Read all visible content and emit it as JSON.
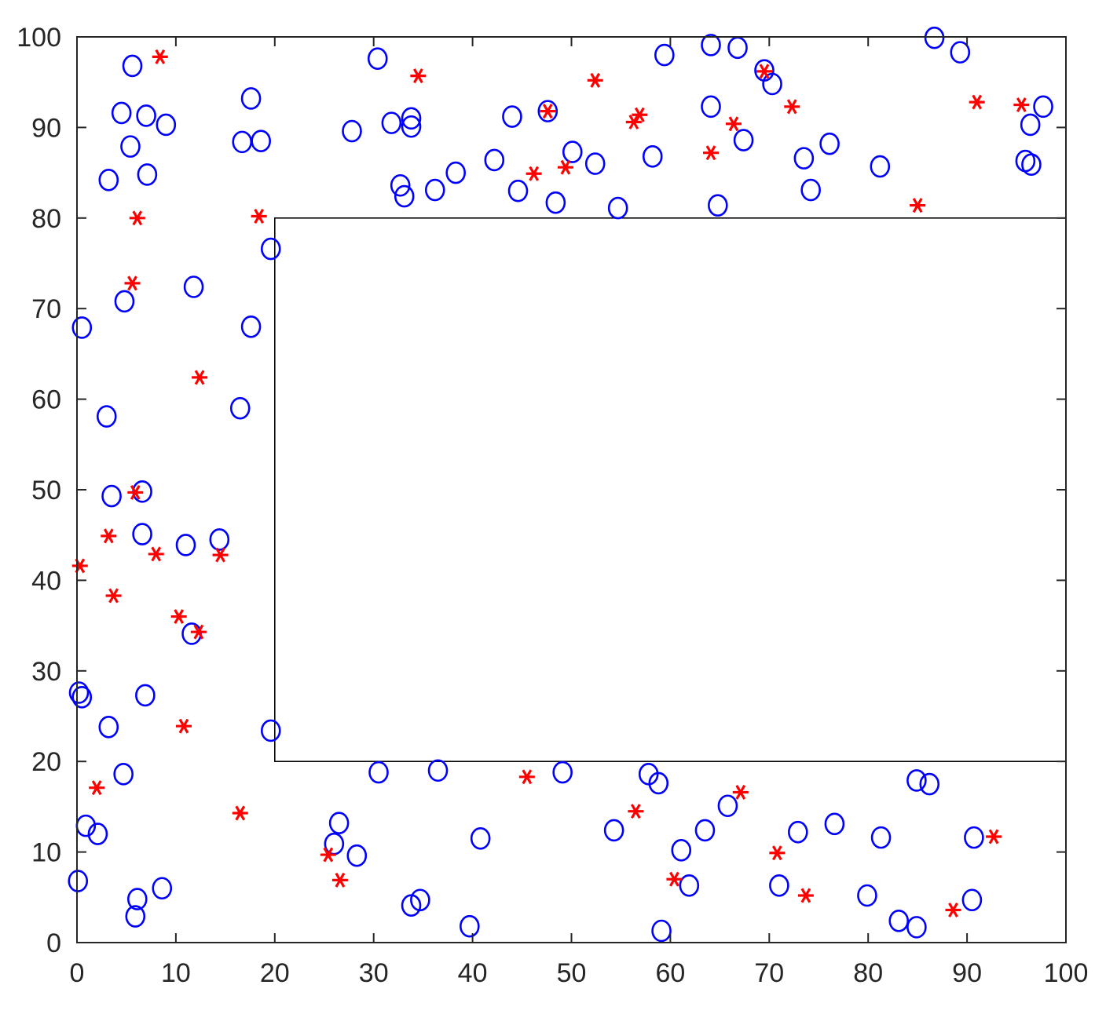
{
  "chart_data": {
    "type": "scatter",
    "title": "",
    "xlabel": "",
    "ylabel": "",
    "xlim": [
      0,
      100
    ],
    "ylim": [
      0,
      100
    ],
    "xticks": [
      0,
      10,
      20,
      30,
      40,
      50,
      60,
      70,
      80,
      90,
      100
    ],
    "yticks": [
      0,
      10,
      20,
      30,
      40,
      50,
      60,
      70,
      80,
      90,
      100
    ],
    "grid": false,
    "inner_rectangle": {
      "x0": 20,
      "x1": 100,
      "y0": 20,
      "y1": 80,
      "color": "#000000"
    },
    "series": [
      {
        "marker": "circle",
        "color": "#0000ff",
        "points": [
          [
            5.6,
            96.8
          ],
          [
            4.5,
            91.6
          ],
          [
            7.0,
            91.3
          ],
          [
            9.0,
            90.3
          ],
          [
            5.4,
            87.9
          ],
          [
            7.1,
            84.8
          ],
          [
            3.2,
            84.2
          ],
          [
            17.6,
            93.2
          ],
          [
            16.7,
            88.4
          ],
          [
            18.6,
            88.5
          ],
          [
            19.6,
            76.6
          ],
          [
            11.8,
            72.4
          ],
          [
            4.8,
            70.8
          ],
          [
            0.5,
            67.9
          ],
          [
            17.6,
            68.0
          ],
          [
            3.0,
            58.1
          ],
          [
            16.5,
            59.0
          ],
          [
            3.5,
            49.3
          ],
          [
            6.6,
            49.8
          ],
          [
            6.6,
            45.1
          ],
          [
            11.0,
            43.9
          ],
          [
            14.4,
            44.5
          ],
          [
            11.6,
            34.1
          ],
          [
            0.2,
            27.6
          ],
          [
            0.5,
            27.1
          ],
          [
            6.9,
            27.3
          ],
          [
            3.2,
            23.8
          ],
          [
            19.6,
            23.4
          ],
          [
            4.7,
            18.6
          ],
          [
            0.9,
            12.9
          ],
          [
            2.1,
            12.0
          ],
          [
            0.1,
            6.8
          ],
          [
            6.1,
            4.8
          ],
          [
            8.6,
            6.0
          ],
          [
            5.9,
            2.9
          ],
          [
            30.4,
            97.6
          ],
          [
            27.8,
            89.6
          ],
          [
            31.8,
            90.5
          ],
          [
            33.8,
            91.0
          ],
          [
            33.8,
            90.1
          ],
          [
            32.7,
            83.6
          ],
          [
            33.1,
            82.4
          ],
          [
            36.2,
            83.1
          ],
          [
            38.3,
            85.0
          ],
          [
            42.2,
            86.4
          ],
          [
            44.0,
            91.2
          ],
          [
            44.6,
            83.0
          ],
          [
            47.6,
            91.8
          ],
          [
            48.4,
            81.7
          ],
          [
            50.1,
            87.3
          ],
          [
            52.4,
            86.0
          ],
          [
            54.7,
            81.1
          ],
          [
            58.2,
            86.8
          ],
          [
            59.4,
            98.0
          ],
          [
            64.1,
            99.1
          ],
          [
            66.8,
            98.8
          ],
          [
            64.1,
            92.3
          ],
          [
            67.4,
            88.6
          ],
          [
            64.8,
            81.4
          ],
          [
            69.5,
            96.3
          ],
          [
            70.3,
            94.8
          ],
          [
            73.5,
            86.6
          ],
          [
            74.2,
            83.1
          ],
          [
            76.1,
            88.2
          ],
          [
            81.2,
            85.7
          ],
          [
            86.7,
            99.9
          ],
          [
            89.3,
            98.3
          ],
          [
            95.9,
            86.3
          ],
          [
            96.5,
            85.9
          ],
          [
            96.4,
            90.3
          ],
          [
            97.7,
            92.3
          ],
          [
            30.5,
            18.8
          ],
          [
            36.5,
            19.0
          ],
          [
            49.1,
            18.8
          ],
          [
            57.8,
            18.6
          ],
          [
            58.8,
            17.6
          ],
          [
            26.5,
            13.2
          ],
          [
            26.0,
            10.9
          ],
          [
            28.3,
            9.6
          ],
          [
            40.8,
            11.5
          ],
          [
            33.8,
            4.1
          ],
          [
            34.7,
            4.7
          ],
          [
            39.7,
            1.8
          ],
          [
            54.3,
            12.4
          ],
          [
            61.1,
            10.2
          ],
          [
            61.9,
            6.3
          ],
          [
            59.1,
            1.3
          ],
          [
            63.5,
            12.4
          ],
          [
            65.8,
            15.1
          ],
          [
            72.9,
            12.2
          ],
          [
            76.6,
            13.1
          ],
          [
            71.0,
            6.3
          ],
          [
            79.9,
            5.2
          ],
          [
            81.3,
            11.6
          ],
          [
            84.9,
            17.9
          ],
          [
            86.2,
            17.5
          ],
          [
            90.7,
            11.6
          ],
          [
            90.5,
            4.7
          ],
          [
            83.1,
            2.4
          ],
          [
            84.9,
            1.7
          ]
        ]
      },
      {
        "marker": "asterisk",
        "color": "#ff0000",
        "points": [
          [
            8.4,
            97.8
          ],
          [
            6.1,
            80.0
          ],
          [
            18.4,
            80.2
          ],
          [
            5.6,
            72.8
          ],
          [
            12.4,
            62.4
          ],
          [
            5.9,
            49.7
          ],
          [
            3.2,
            44.9
          ],
          [
            8.0,
            42.9
          ],
          [
            14.5,
            42.8
          ],
          [
            0.3,
            41.6
          ],
          [
            3.7,
            38.3
          ],
          [
            10.3,
            36.0
          ],
          [
            12.3,
            34.3
          ],
          [
            10.8,
            23.9
          ],
          [
            2.0,
            17.1
          ],
          [
            16.5,
            14.3
          ],
          [
            34.5,
            95.7
          ],
          [
            52.4,
            95.2
          ],
          [
            46.2,
            84.9
          ],
          [
            49.4,
            85.6
          ],
          [
            47.6,
            91.8
          ],
          [
            56.3,
            90.6
          ],
          [
            56.9,
            91.4
          ],
          [
            64.1,
            87.2
          ],
          [
            66.4,
            90.4
          ],
          [
            69.5,
            96.2
          ],
          [
            72.3,
            92.3
          ],
          [
            85.0,
            81.4
          ],
          [
            91.0,
            92.8
          ],
          [
            95.5,
            92.5
          ],
          [
            45.5,
            18.3
          ],
          [
            56.5,
            14.5
          ],
          [
            67.1,
            16.6
          ],
          [
            25.4,
            9.7
          ],
          [
            26.6,
            6.9
          ],
          [
            60.4,
            7.0
          ],
          [
            70.8,
            9.9
          ],
          [
            73.7,
            5.2
          ],
          [
            88.6,
            3.6
          ],
          [
            92.7,
            11.7
          ]
        ]
      }
    ]
  }
}
